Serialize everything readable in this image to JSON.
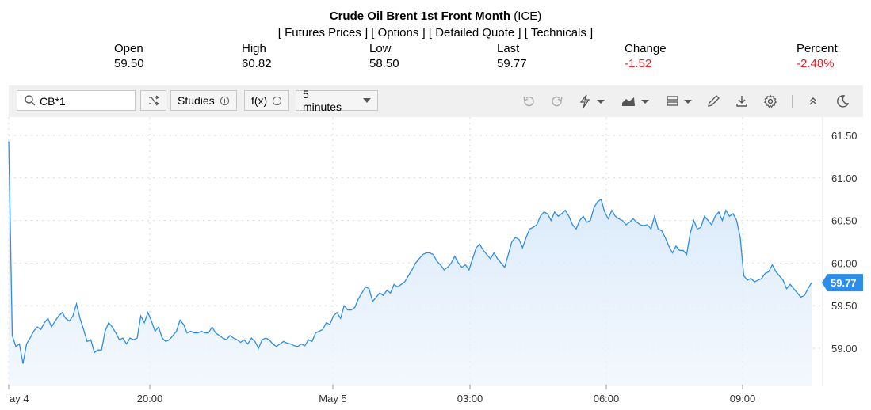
{
  "header": {
    "title_bold": "Crude Oil Brent 1st Front Month",
    "title_exchange": "(ICE)",
    "links": [
      "Futures Prices",
      "Options",
      "Detailed Quote",
      "Technicals"
    ]
  },
  "quote": {
    "open_label": "Open",
    "open_value": "59.50",
    "high_label": "High",
    "high_value": "60.82",
    "low_label": "Low",
    "low_value": "58.50",
    "last_label": "Last",
    "last_value": "59.77",
    "change_label": "Change",
    "change_value": "-1.52",
    "percent_label": "Percent",
    "percent_value": "-2.48%"
  },
  "toolbar": {
    "search_value": "CB*1",
    "studies_label": "Studies",
    "fx_label": "f(x)",
    "interval_label": "5 minutes",
    "icons": [
      "search-icon",
      "shuffle-icon",
      "plus-circle-icon",
      "undo-icon",
      "redo-icon",
      "lightning-icon",
      "area-chart-icon",
      "layout-icon",
      "pencil-icon",
      "download-icon",
      "gear-icon",
      "collapse-icon",
      "moon-icon"
    ]
  },
  "colors": {
    "line": "#2e8de6",
    "fill": "#d6e9fb",
    "negative": "#e8202a",
    "price_badge": "#2e8de6"
  },
  "chart_data": {
    "type": "area",
    "x_ticks": [
      "ay 4",
      "20:00",
      "May 5",
      "03:00",
      "06:00",
      "09:00"
    ],
    "y_ticks": [
      "61.50",
      "61.00",
      "60.50",
      "60.00",
      "59.50",
      "59.00"
    ],
    "ylim": [
      58.6,
      61.65
    ],
    "grid": true,
    "last_price_label": "59.77",
    "values": [
      61.43,
      59.15,
      59.02,
      59.05,
      58.82,
      59.05,
      59.12,
      59.2,
      59.25,
      59.22,
      59.3,
      59.35,
      59.25,
      59.32,
      59.38,
      59.42,
      59.35,
      59.32,
      59.38,
      59.52,
      59.35,
      59.22,
      59.08,
      59.1,
      58.95,
      58.98,
      58.98,
      59.2,
      59.3,
      59.25,
      59.18,
      59.1,
      59.12,
      59.05,
      59.12,
      59.1,
      59.12,
      59.38,
      59.3,
      59.42,
      59.32,
      59.2,
      59.25,
      59.12,
      59.08,
      59.1,
      59.15,
      59.2,
      59.33,
      59.28,
      59.18,
      59.2,
      59.18,
      59.18,
      59.2,
      59.18,
      59.18,
      59.25,
      59.18,
      59.15,
      59.12,
      59.1,
      59.15,
      59.12,
      59.1,
      59.07,
      59.1,
      59.05,
      59.12,
      59.08,
      59.0,
      59.1,
      59.12,
      59.1,
      59.05,
      59.02,
      59.05,
      59.08,
      59.06,
      59.05,
      59.03,
      59.02,
      59.05,
      59.03,
      59.1,
      59.08,
      59.18,
      59.2,
      59.22,
      59.3,
      59.28,
      59.38,
      59.42,
      59.35,
      59.5,
      59.45,
      59.45,
      59.48,
      59.58,
      59.65,
      59.72,
      59.7,
      59.55,
      59.6,
      59.65,
      59.62,
      59.68,
      59.65,
      59.75,
      59.72,
      59.75,
      59.78,
      59.85,
      59.92,
      60.0,
      60.05,
      60.1,
      60.12,
      60.12,
      60.1,
      60.02,
      59.98,
      59.92,
      59.95,
      60.0,
      60.08,
      60.0,
      59.95,
      59.98,
      59.92,
      60.05,
      60.18,
      60.22,
      60.15,
      60.1,
      60.05,
      60.12,
      60.05,
      60.0,
      59.95,
      60.1,
      60.25,
      60.3,
      60.28,
      60.18,
      60.3,
      60.4,
      60.42,
      60.45,
      60.55,
      60.6,
      60.58,
      60.5,
      60.6,
      60.55,
      60.58,
      60.62,
      60.55,
      60.45,
      60.4,
      60.5,
      60.55,
      60.48,
      60.5,
      60.65,
      60.72,
      60.75,
      60.6,
      60.52,
      60.62,
      60.55,
      60.52,
      60.5,
      60.45,
      60.48,
      60.52,
      60.48,
      60.45,
      60.44,
      60.45,
      60.4,
      60.55,
      60.4,
      60.38,
      60.3,
      60.2,
      60.12,
      60.2,
      60.15,
      60.15,
      60.1,
      60.35,
      60.5,
      60.4,
      60.42,
      60.55,
      60.5,
      60.45,
      60.55,
      60.6,
      60.5,
      60.62,
      60.55,
      60.58,
      60.5,
      60.3,
      59.85,
      59.8,
      59.82,
      59.78,
      59.8,
      59.82,
      59.88,
      59.9,
      59.98,
      59.9,
      59.85,
      59.8,
      59.7,
      59.75,
      59.7,
      59.65,
      59.6,
      59.62,
      59.7,
      59.77
    ]
  }
}
